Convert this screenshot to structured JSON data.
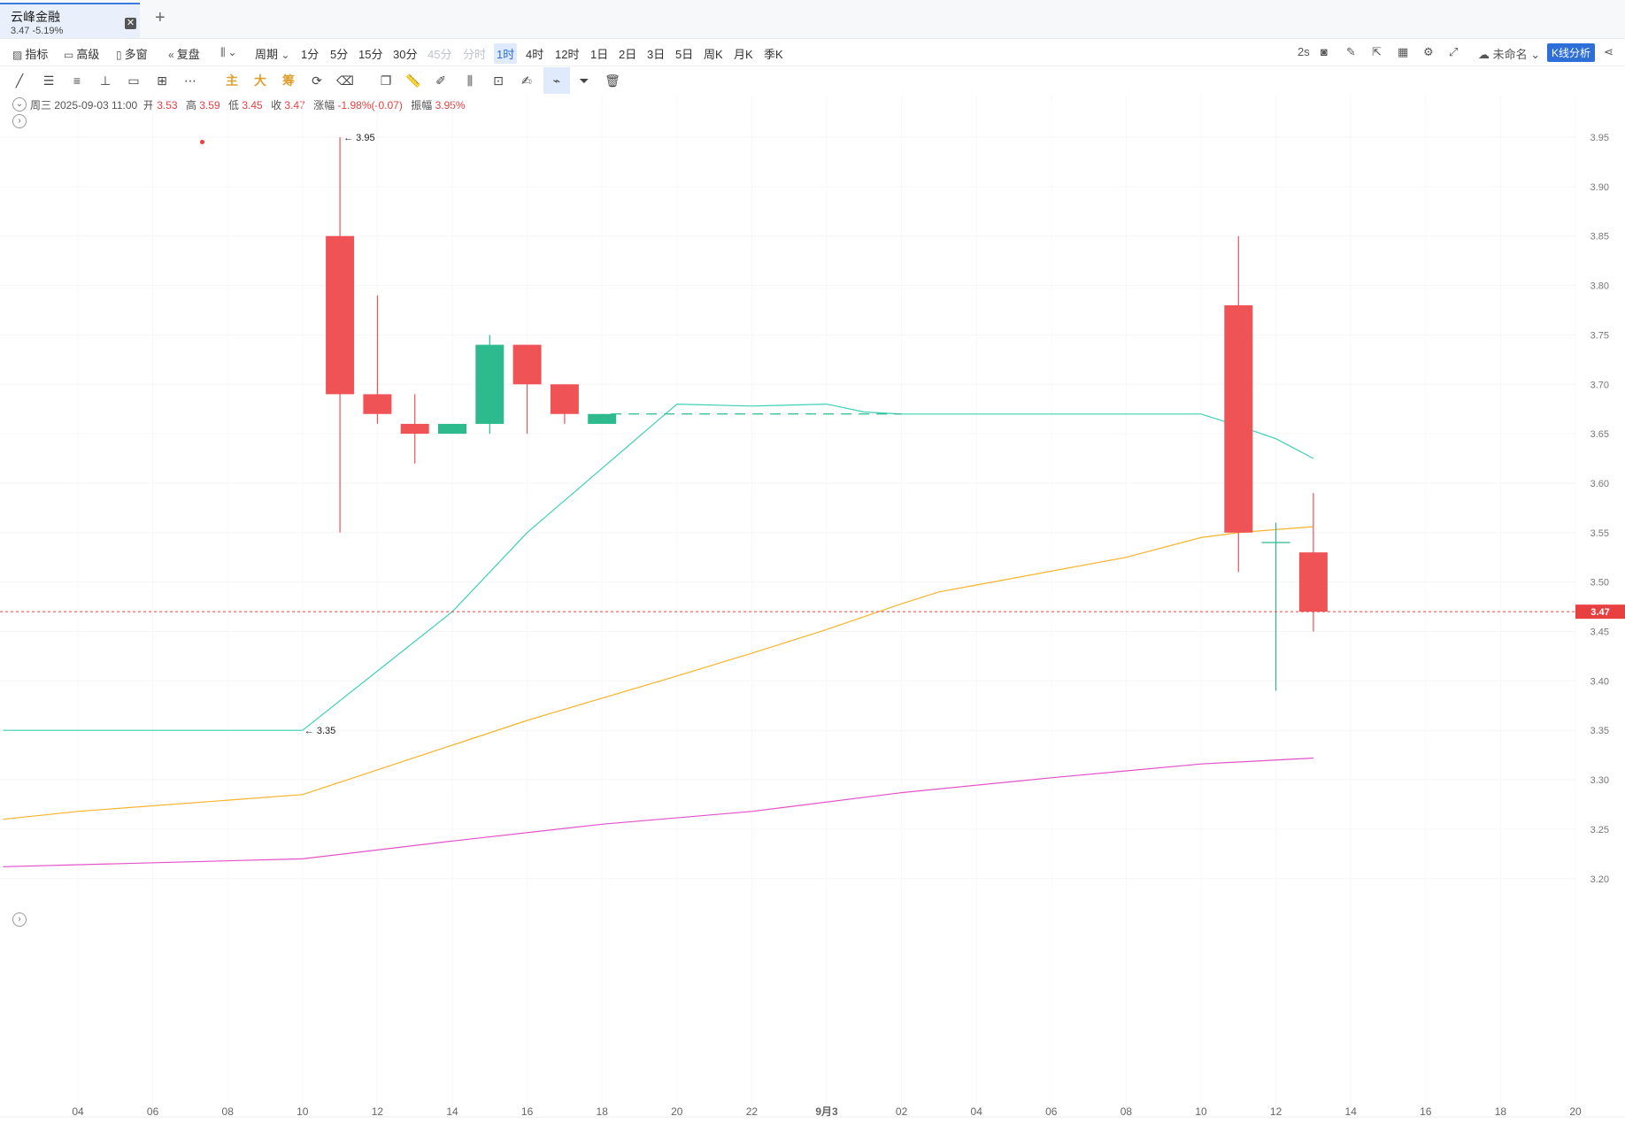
{
  "tab": {
    "name": "云峰金融",
    "quote": "3.47  -5.19%"
  },
  "toolbar": {
    "indicator_label": "指标",
    "advanced_label": "高级",
    "multiwin_label": "多窗",
    "replay_label": "复盘",
    "cycle_label": "周期",
    "periods": [
      "1分",
      "5分",
      "15分",
      "30分",
      "45分",
      "分时",
      "1时",
      "4时",
      "12时",
      "1日",
      "2日",
      "3日",
      "5日",
      "周K",
      "月K",
      "季K"
    ],
    "active_period": "1时",
    "disabled_periods": [
      "45分",
      "分时"
    ],
    "refresh_label": "2s",
    "layout_name": "未命名",
    "kline_analysis_label": "K线分析"
  },
  "indicator_tools": {
    "main": "主",
    "big": "大",
    "chip": "筹"
  },
  "info": {
    "weekday_date": "周三 2025-09-03 11:00",
    "open_label": "开",
    "open": "3.53",
    "high_label": "高",
    "high": "3.59",
    "low_label": "低",
    "low": "3.45",
    "close_label": "收",
    "close": "3.47",
    "change_label": "涨幅",
    "change": "-1.98%(-0.07)",
    "amplitude_label": "振幅",
    "amplitude": "3.95%"
  },
  "colors": {
    "up": "#ef5356",
    "down": "#2dba8d",
    "ma_cyan": "#3cd0b6",
    "ma_orange": "#f7b32b",
    "ma_pink": "#e351c9",
    "price_line": "#e84040",
    "accent": "#2d6fd6"
  },
  "chart_data": {
    "type": "candlestick",
    "x_labels": [
      "04",
      "06",
      "08",
      "10",
      "12",
      "14",
      "16",
      "18",
      "20",
      "22",
      "9月3",
      "02",
      "04",
      "06",
      "08",
      "10",
      "12",
      "14",
      "16",
      "18",
      "20"
    ],
    "y_ticks": [
      "3.95",
      "3.90",
      "3.85",
      "3.80",
      "3.75",
      "3.70",
      "3.65",
      "3.60",
      "3.55",
      "3.50",
      "3.45",
      "3.40",
      "3.35",
      "3.30",
      "3.25",
      "3.20"
    ],
    "ylim": [
      3.15,
      3.98
    ],
    "last_price": "3.47",
    "high_marker": "3.95",
    "low_marker": "3.35",
    "candles": [
      {
        "t": 9,
        "o": 3.85,
        "h": 3.95,
        "l": 3.55,
        "c": 3.69
      },
      {
        "t": 10,
        "o": 3.69,
        "h": 3.79,
        "l": 3.66,
        "c": 3.67
      },
      {
        "t": 11,
        "o": 3.66,
        "h": 3.69,
        "l": 3.62,
        "c": 3.65
      },
      {
        "t": 12,
        "o": 3.65,
        "h": 3.66,
        "l": 3.65,
        "c": 3.66
      },
      {
        "t": 13,
        "o": 3.66,
        "h": 3.75,
        "l": 3.65,
        "c": 3.74
      },
      {
        "t": 14,
        "o": 3.74,
        "h": 3.74,
        "l": 3.65,
        "c": 3.7
      },
      {
        "t": 15,
        "o": 3.7,
        "h": 3.7,
        "l": 3.66,
        "c": 3.67
      },
      {
        "t": 16,
        "o": 3.66,
        "h": 3.67,
        "l": 3.66,
        "c": 3.67
      },
      {
        "t": 33,
        "o": 3.78,
        "h": 3.85,
        "l": 3.51,
        "c": 3.55
      },
      {
        "t": 34,
        "o": 3.54,
        "h": 3.56,
        "l": 3.39,
        "c": 3.54
      },
      {
        "t": 35,
        "o": 3.53,
        "h": 3.59,
        "l": 3.45,
        "c": 3.47
      }
    ],
    "series": [
      {
        "color": "ma_cyan",
        "points": [
          [
            0,
            3.35
          ],
          [
            8,
            3.35
          ],
          [
            12,
            3.47
          ],
          [
            14,
            3.55
          ],
          [
            18,
            3.68
          ],
          [
            20,
            3.678
          ],
          [
            22,
            3.68
          ],
          [
            23,
            3.672
          ],
          [
            24,
            3.67
          ],
          [
            32,
            3.67
          ],
          [
            33,
            3.658
          ],
          [
            34,
            3.645
          ],
          [
            35,
            3.625
          ]
        ]
      },
      {
        "color": "ma_orange",
        "points": [
          [
            0,
            3.26
          ],
          [
            2,
            3.268
          ],
          [
            8,
            3.285
          ],
          [
            12,
            3.335
          ],
          [
            14,
            3.36
          ],
          [
            18,
            3.405
          ],
          [
            20,
            3.428
          ],
          [
            22,
            3.452
          ],
          [
            24,
            3.478
          ],
          [
            25,
            3.49
          ],
          [
            26,
            3.497
          ],
          [
            30,
            3.525
          ],
          [
            32,
            3.545
          ],
          [
            33,
            3.55
          ],
          [
            34,
            3.553
          ],
          [
            35,
            3.556
          ]
        ]
      },
      {
        "color": "ma_pink",
        "points": [
          [
            0,
            3.212
          ],
          [
            8,
            3.22
          ],
          [
            12,
            3.238
          ],
          [
            16,
            3.255
          ],
          [
            20,
            3.268
          ],
          [
            24,
            3.287
          ],
          [
            28,
            3.302
          ],
          [
            32,
            3.316
          ],
          [
            35,
            3.322
          ]
        ]
      }
    ],
    "dashed_level": {
      "y": 3.67,
      "t_from": 16,
      "t_to": 24
    }
  }
}
